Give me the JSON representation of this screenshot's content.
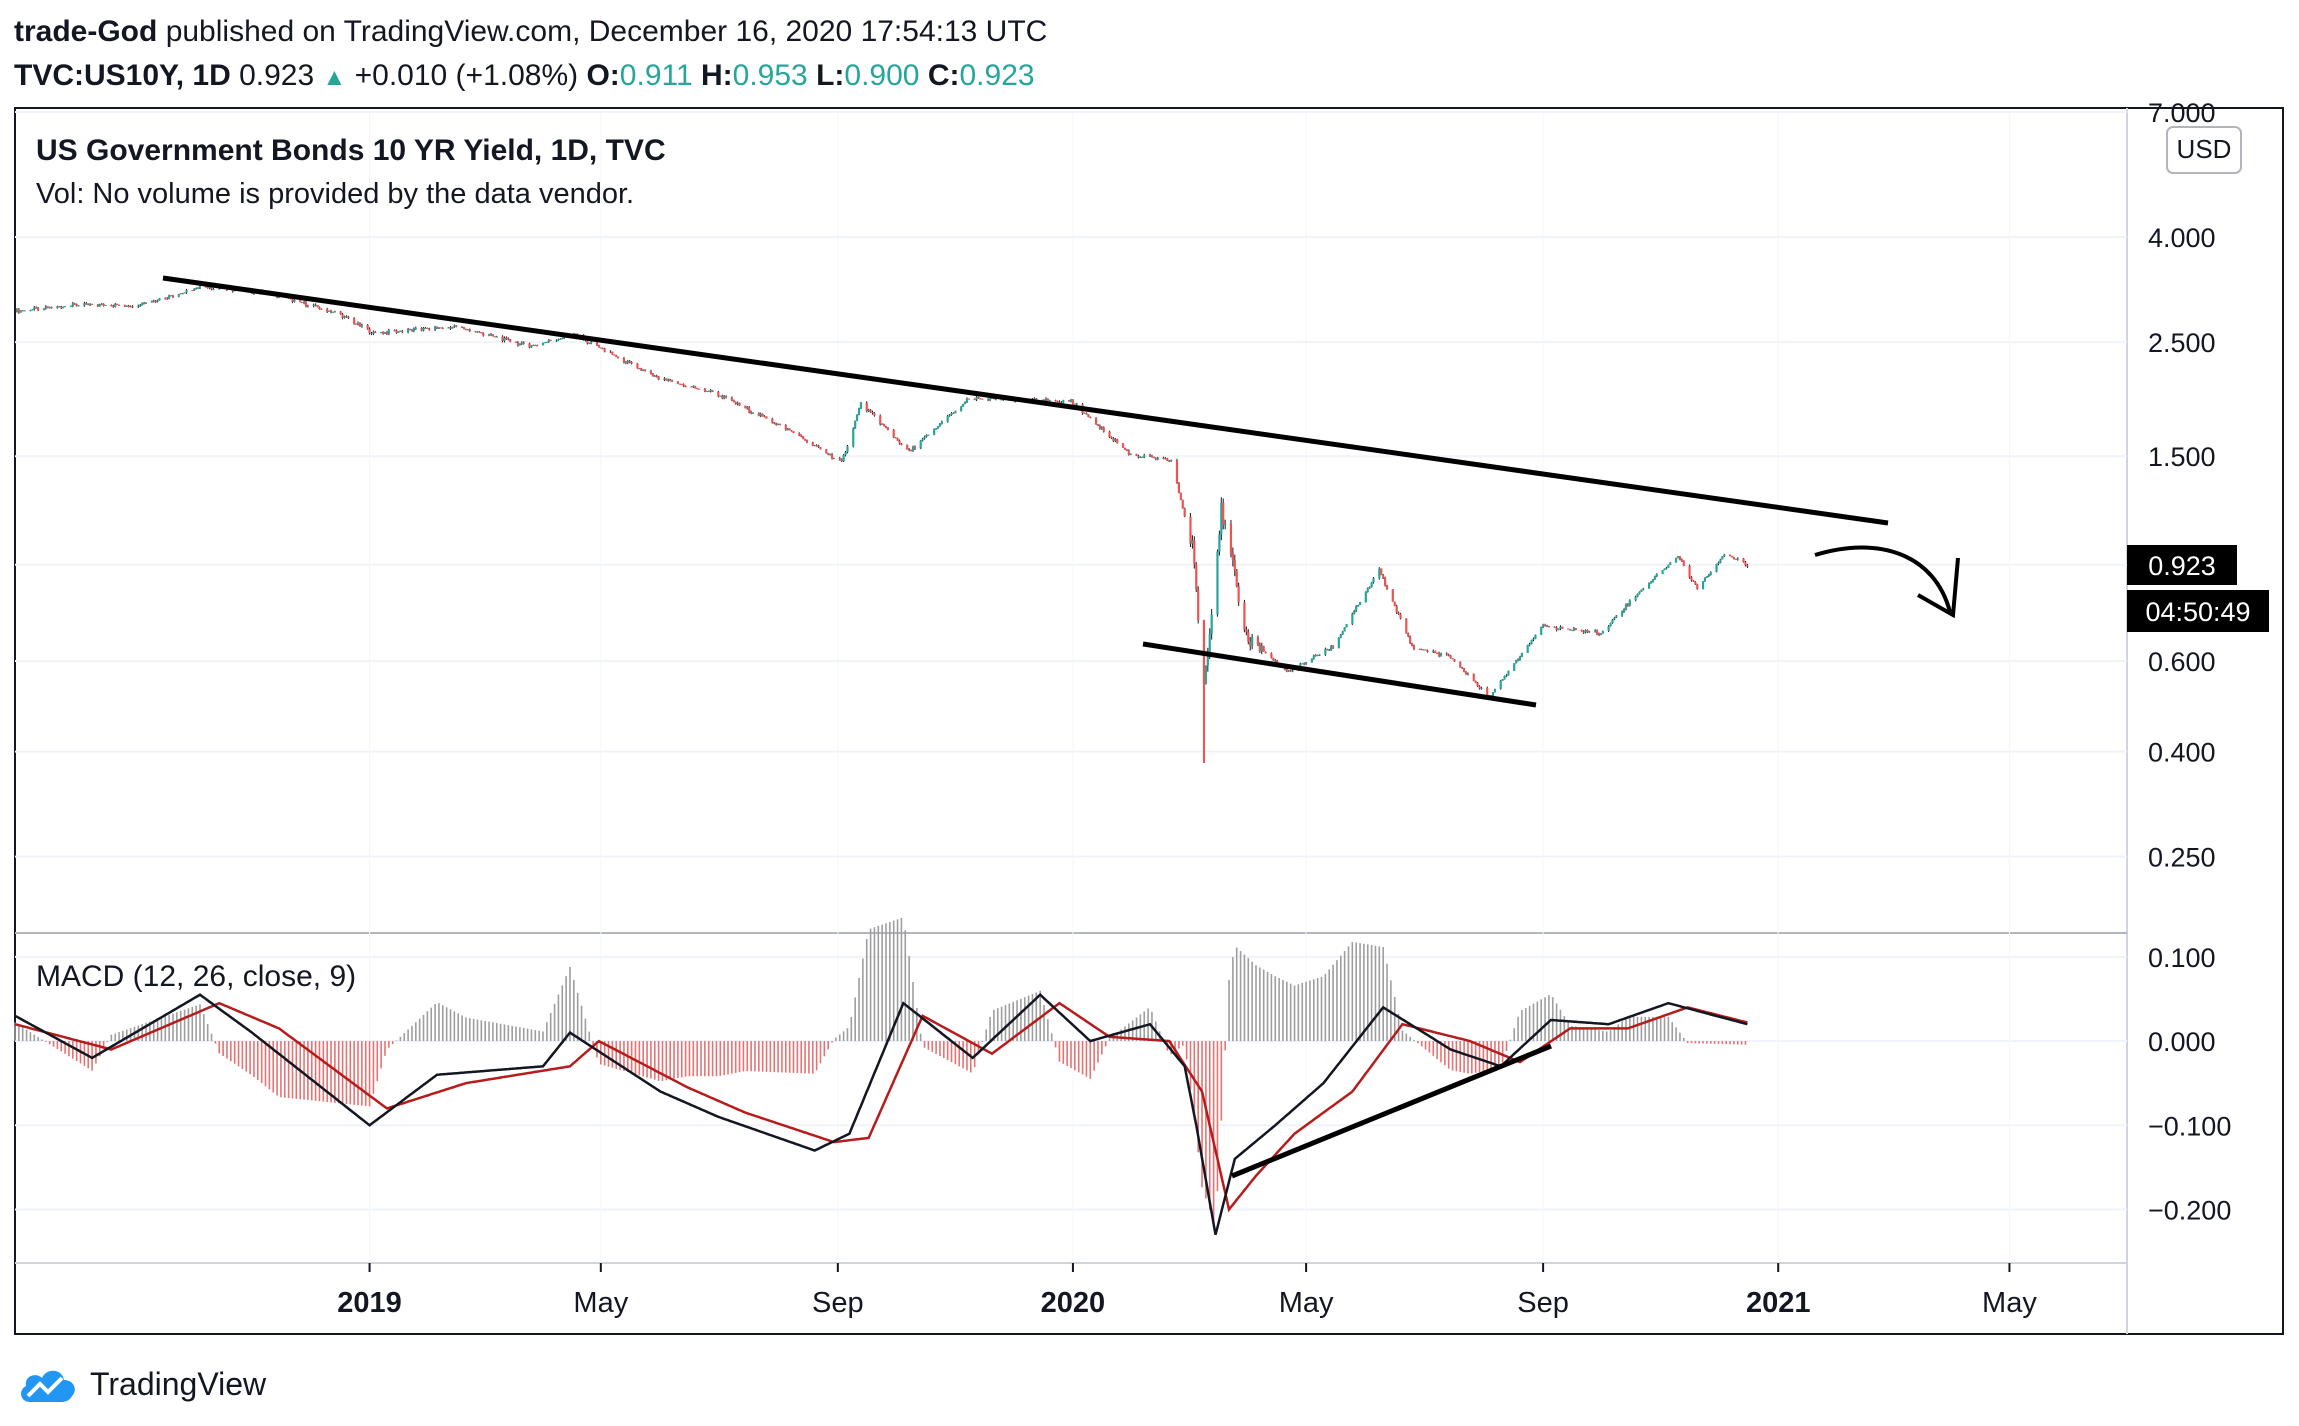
{
  "header": {
    "author": "trade-God",
    "published_text": "published on TradingView.com, December 16, 2020 17:54:13 UTC",
    "symbol": "TVC:US10Y, 1D",
    "last": "0.923",
    "change": "+0.010 (+1.08%)",
    "o_label": "O:",
    "o_value": "0.911",
    "h_label": "H:",
    "h_value": "0.953",
    "l_label": "L:",
    "l_value": "0.900",
    "c_label": "C:",
    "c_value": "0.923"
  },
  "legend": {
    "title": "US Government Bonds 10 YR Yield, 1D, TVC",
    "vol": "Vol: No volume is provided by the data vendor.",
    "currency": "USD",
    "macd": "MACD (12, 26, close, 9)"
  },
  "badges": {
    "price": "0.923",
    "countdown": "04:50:49"
  },
  "footer": {
    "brand": "TradingView"
  },
  "colors": {
    "up": "#26a69a",
    "down": "#ef5350",
    "macd": "#131722",
    "signal": "#b71c1c",
    "hist_up": "#9e9e9e",
    "hist_down": "#e57373"
  },
  "chart_data": [
    {
      "type": "line",
      "title": "US Government Bonds 10 YR Yield, 1D, TVC",
      "scale": "log",
      "ylim": [
        0.18,
        7.0
      ],
      "y_ticks": [
        "7.000",
        "4.000",
        "2.500",
        "1.500",
        "0.923",
        "0.600",
        "0.400",
        "0.250"
      ],
      "x_ticks": [
        "2019",
        "May",
        "Sep",
        "2020",
        "May",
        "Sep",
        "2021",
        "May"
      ],
      "x_range": [
        "2018-07-01",
        "2021-07-01"
      ],
      "series": [
        {
          "x": [
            "2018-07-01",
            "2018-08-01",
            "2018-09-01",
            "2018-10-08",
            "2018-11-08",
            "2018-12-15",
            "2019-01-03",
            "2019-02-15",
            "2019-03-25",
            "2019-04-17",
            "2019-05-31",
            "2019-06-28",
            "2019-08-05",
            "2019-09-03",
            "2019-09-13",
            "2019-10-08",
            "2019-11-08",
            "2019-12-31",
            "2020-01-31",
            "2020-02-21",
            "2020-03-03",
            "2020-03-09",
            "2020-03-18",
            "2020-03-31",
            "2020-04-21",
            "2020-05-15",
            "2020-06-08",
            "2020-06-25",
            "2020-07-15",
            "2020-08-04",
            "2020-08-31",
            "2020-10-01",
            "2020-10-21",
            "2020-11-10",
            "2020-11-20",
            "2020-12-04",
            "2020-12-16"
          ],
          "values": [
            2.87,
            2.95,
            2.95,
            3.2,
            3.12,
            2.85,
            2.6,
            2.68,
            2.45,
            2.59,
            2.12,
            2.0,
            1.7,
            1.46,
            1.9,
            1.53,
            1.94,
            1.92,
            1.51,
            1.47,
            1.0,
            0.54,
            1.18,
            0.67,
            0.57,
            0.64,
            0.9,
            0.64,
            0.61,
            0.51,
            0.7,
            0.68,
            0.82,
            0.96,
            0.83,
            0.97,
            0.923
          ]
        }
      ],
      "annotations": [
        "descending trendline",
        "support trendline",
        "down arrow"
      ]
    },
    {
      "type": "line",
      "title": "MACD (12, 26, close, 9)",
      "ylim": [
        -0.26,
        0.12
      ],
      "y_ticks": [
        "0.100",
        "0.000",
        "-0.100",
        "-0.200"
      ],
      "series": [
        {
          "name": "MACD",
          "x": [
            "2018-07-01",
            "2018-08-10",
            "2018-10-05",
            "2018-11-01",
            "2019-01-01",
            "2019-02-05",
            "2019-04-01",
            "2019-04-15",
            "2019-06-01",
            "2019-07-01",
            "2019-08-20",
            "2019-09-07",
            "2019-10-05",
            "2019-11-10",
            "2019-12-15",
            "2020-01-10",
            "2020-02-10",
            "2020-02-28",
            "2020-03-05",
            "2020-03-15",
            "2020-03-25",
            "2020-04-15",
            "2020-05-10",
            "2020-06-10",
            "2020-07-15",
            "2020-08-10",
            "2020-09-05",
            "2020-10-05",
            "2020-11-05",
            "2020-12-16"
          ],
          "values": [
            0.03,
            -0.02,
            0.055,
            0.01,
            -0.1,
            -0.04,
            -0.03,
            0.01,
            -0.06,
            -0.09,
            -0.13,
            -0.11,
            0.045,
            -0.02,
            0.055,
            0.0,
            0.02,
            -0.03,
            -0.1,
            -0.23,
            -0.14,
            -0.1,
            -0.05,
            0.04,
            -0.01,
            -0.03,
            0.025,
            0.02,
            0.045,
            0.02
          ]
        },
        {
          "name": "Signal",
          "x": [
            "2018-07-01",
            "2018-08-20",
            "2018-10-15",
            "2018-11-15",
            "2019-01-10",
            "2019-02-20",
            "2019-04-15",
            "2019-04-30",
            "2019-06-15",
            "2019-07-15",
            "2019-08-30",
            "2019-09-17",
            "2019-10-15",
            "2019-11-20",
            "2019-12-25",
            "2020-01-20",
            "2020-02-20",
            "2020-03-08",
            "2020-03-22",
            "2020-04-05",
            "2020-04-25",
            "2020-05-25",
            "2020-06-20",
            "2020-07-25",
            "2020-08-20",
            "2020-09-15",
            "2020-10-15",
            "2020-11-15",
            "2020-12-16"
          ],
          "values": [
            0.02,
            -0.01,
            0.045,
            0.015,
            -0.08,
            -0.05,
            -0.03,
            0.0,
            -0.055,
            -0.085,
            -0.12,
            -0.115,
            0.03,
            -0.015,
            0.045,
            0.005,
            0.0,
            -0.06,
            -0.2,
            -0.16,
            -0.11,
            -0.06,
            0.02,
            0.0,
            -0.025,
            0.015,
            0.015,
            0.04,
            0.022
          ]
        }
      ]
    }
  ]
}
